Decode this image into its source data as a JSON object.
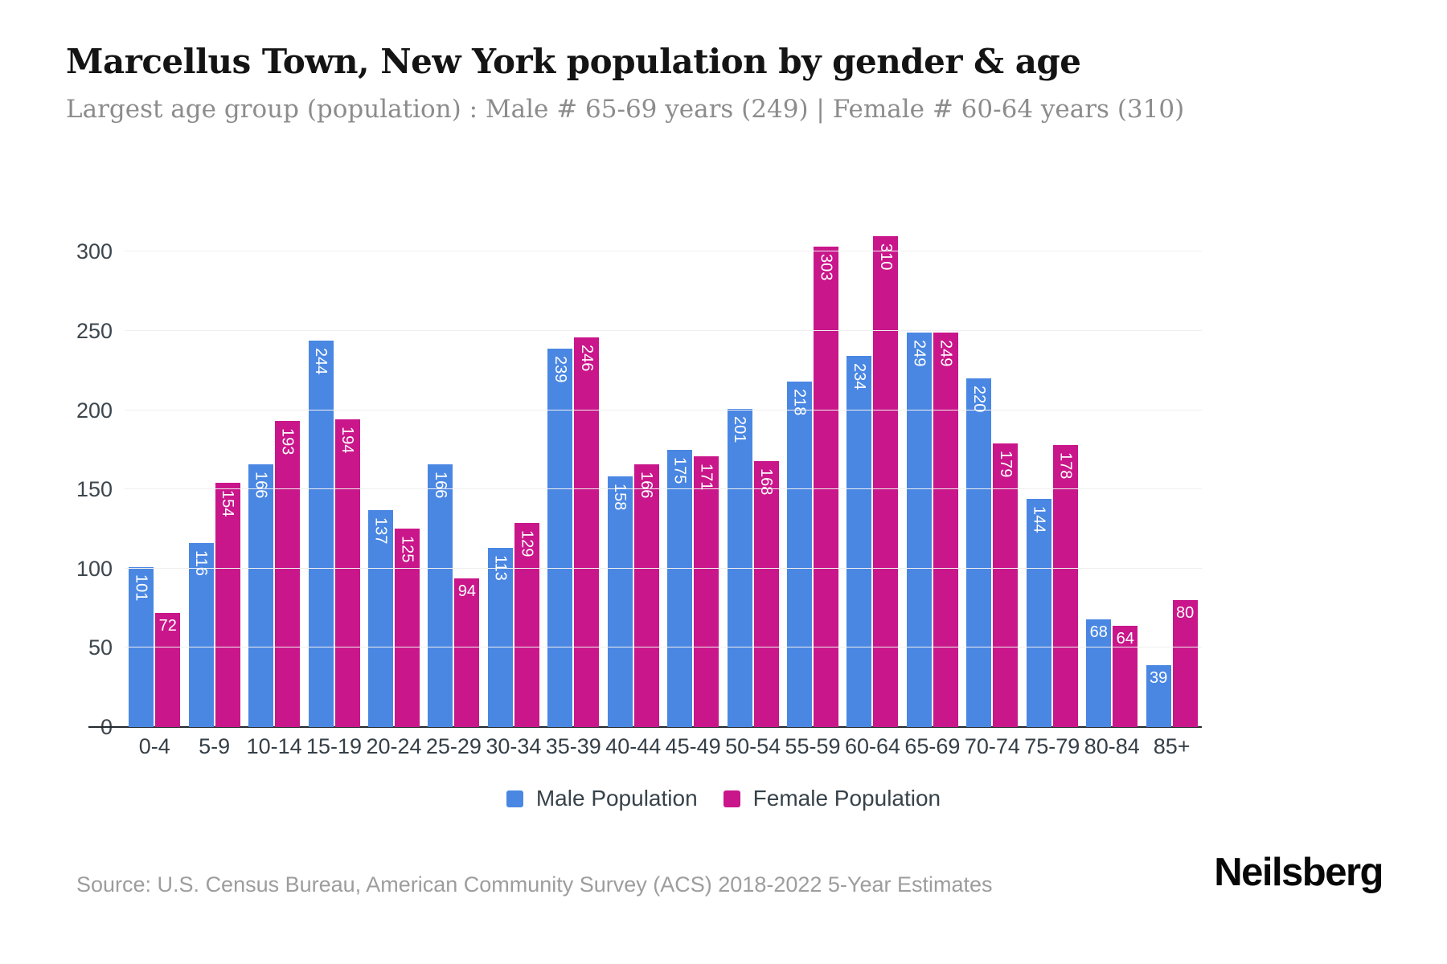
{
  "header": {
    "title": "Marcellus Town, New York population by gender & age",
    "subtitle": "Largest age group (population) : Male # 65-69 years (249) | Female # 60-64 years (310)"
  },
  "chart_data": {
    "type": "bar",
    "title": "Marcellus Town, New York population by gender & age",
    "categories": [
      "0-4",
      "5-9",
      "10-14",
      "15-19",
      "20-24",
      "25-29",
      "30-34",
      "35-39",
      "40-44",
      "45-49",
      "50-54",
      "55-59",
      "60-64",
      "65-69",
      "70-74",
      "75-79",
      "80-84",
      "85+"
    ],
    "series": [
      {
        "name": "Male Population",
        "color": "#4a87e3",
        "values": [
          101,
          116,
          166,
          244,
          137,
          166,
          113,
          239,
          158,
          175,
          201,
          218,
          234,
          249,
          220,
          144,
          68,
          39
        ]
      },
      {
        "name": "Female Population",
        "color": "#c9168a",
        "values": [
          72,
          154,
          193,
          194,
          125,
          94,
          129,
          246,
          166,
          171,
          168,
          303,
          310,
          249,
          179,
          178,
          64,
          80
        ]
      }
    ],
    "xlabel": "",
    "ylabel": "",
    "ylim": [
      0,
      325
    ],
    "yticks": [
      0,
      50,
      100,
      150,
      200,
      250,
      300
    ],
    "grid": "horizontal",
    "legend_position": "bottom",
    "bar_label_color": "#ffffff",
    "gridline_color": "#efefef",
    "axis_line_color": "#23292e"
  },
  "footer": {
    "source": "Source: U.S. Census Bureau, American Community Survey (ACS) 2018-2022 5-Year Estimates",
    "brand": "Neilsberg"
  }
}
